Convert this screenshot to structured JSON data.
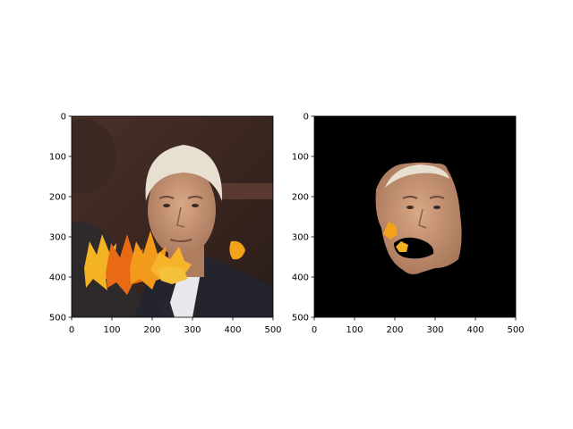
{
  "chart_data": [
    {
      "type": "image",
      "panel": "left",
      "content": "original photo with autumn maple leaves occluding the lower face",
      "xlim": [
        0,
        500
      ],
      "ylim": [
        500,
        0
      ],
      "xticks": [
        0,
        100,
        200,
        300,
        400,
        500
      ],
      "yticks": [
        0,
        100,
        200,
        300,
        400,
        500
      ],
      "grid": false,
      "colors": {
        "background": "#3a2620",
        "face": "#c99877",
        "hair": "#e8e0d2",
        "suit": "#2a2a32",
        "leaf_orange": "#f2a21a",
        "leaf_red": "#e05a12"
      }
    },
    {
      "type": "image",
      "panel": "right",
      "content": "segmentation mask: face region kept on black background, with occluding leaf fragments",
      "xlim": [
        0,
        500
      ],
      "ylim": [
        500,
        0
      ],
      "xticks": [
        0,
        100,
        200,
        300,
        400,
        500
      ],
      "yticks": [
        0,
        100,
        200,
        300,
        400,
        500
      ],
      "grid": false,
      "colors": {
        "background": "#000000",
        "face": "#c99877",
        "hair": "#e8e0d2",
        "leaf_orange": "#f2a21a"
      }
    }
  ]
}
